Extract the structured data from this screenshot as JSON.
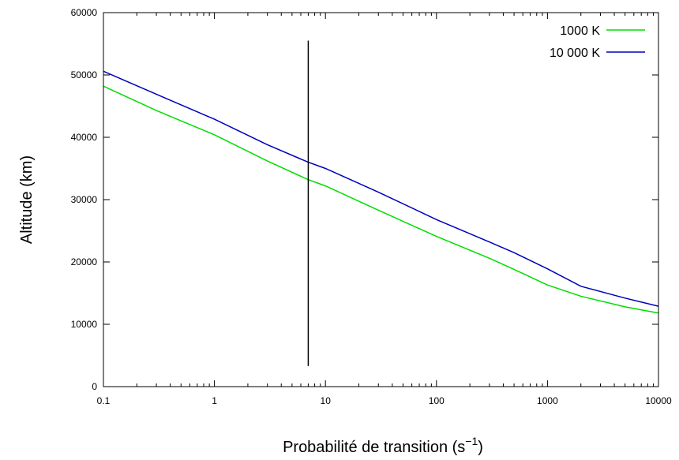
{
  "chart_data": {
    "type": "line",
    "xscale": "log",
    "xlim": [
      0.1,
      10000
    ],
    "ylim": [
      0,
      60000
    ],
    "grid": false,
    "legend_position": "top-right",
    "xlabel": "Probabilité de transition (s",
    "xlabel_sup": "−1",
    "xlabel_suffix": ")",
    "ylabel": "Altitude (km)",
    "x_ticks": [
      {
        "value": 0.1,
        "label": "0.1"
      },
      {
        "value": 1,
        "label": "1"
      },
      {
        "value": 10,
        "label": "10"
      },
      {
        "value": 100,
        "label": "100"
      },
      {
        "value": 1000,
        "label": "1000"
      },
      {
        "value": 10000,
        "label": "10000"
      }
    ],
    "y_ticks": [
      {
        "value": 0,
        "label": "0"
      },
      {
        "value": 10000,
        "label": "10000"
      },
      {
        "value": 20000,
        "label": "20000"
      },
      {
        "value": 30000,
        "label": "30000"
      },
      {
        "value": 40000,
        "label": "40000"
      },
      {
        "value": 50000,
        "label": "50000"
      },
      {
        "value": 60000,
        "label": "60000"
      }
    ],
    "series": [
      {
        "name": "1000 K",
        "color": "#00dd00",
        "points": [
          [
            0.1,
            48200
          ],
          [
            0.3,
            44300
          ],
          [
            1,
            40400
          ],
          [
            3,
            36200
          ],
          [
            7,
            33200
          ],
          [
            10,
            32200
          ],
          [
            30,
            28300
          ],
          [
            100,
            24100
          ],
          [
            300,
            20600
          ],
          [
            500,
            18800
          ],
          [
            1000,
            16300
          ],
          [
            2000,
            14500
          ],
          [
            5000,
            12800
          ],
          [
            10000,
            11800
          ]
        ]
      },
      {
        "name": "10 000 K",
        "color": "#0000bb",
        "points": [
          [
            0.1,
            50600
          ],
          [
            0.3,
            46900
          ],
          [
            1,
            42900
          ],
          [
            3,
            38800
          ],
          [
            7,
            36000
          ],
          [
            10,
            35000
          ],
          [
            30,
            31200
          ],
          [
            100,
            26800
          ],
          [
            300,
            23200
          ],
          [
            500,
            21500
          ],
          [
            1000,
            18900
          ],
          [
            2000,
            16100
          ],
          [
            5000,
            14200
          ],
          [
            10000,
            12900
          ]
        ]
      }
    ],
    "vertical_line": {
      "x": 7,
      "y_from": 3300,
      "y_to": 55500,
      "color": "#000000"
    }
  }
}
